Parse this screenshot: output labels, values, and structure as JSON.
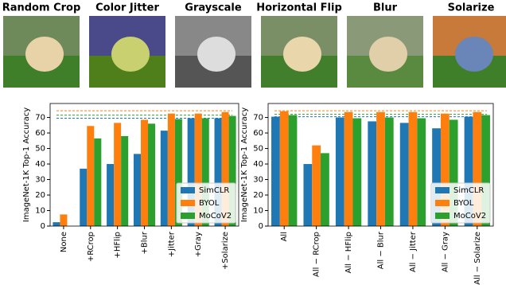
{
  "augmentations": [
    "Random Crop",
    "Color Jitter",
    "Grayscale",
    "Horizontal Flip",
    "Blur",
    "Solarize"
  ],
  "chart_data": [
    {
      "type": "bar",
      "ylabel": "ImageNet-1K Top-1 Accuracy",
      "categories": [
        "None",
        "+RCrop",
        "+HFlip",
        "+Blur",
        "+Jitter",
        "+Gray",
        "+Solarize"
      ],
      "series": [
        {
          "name": "SimCLR",
          "color": "#1f77b4",
          "values": [
            2.5,
            37,
            40,
            46.5,
            61.5,
            69.5,
            69.5
          ],
          "reference": 69.5
        },
        {
          "name": "BYOL",
          "color": "#ff7f0e",
          "values": [
            7.5,
            64.5,
            66.5,
            68.5,
            72.5,
            72.5,
            73.5
          ],
          "reference": 74.3
        },
        {
          "name": "MoCoV2",
          "color": "#2ca02c",
          "values": [
            0,
            56.5,
            58,
            66,
            69,
            69.5,
            71
          ],
          "reference": 71.5
        }
      ],
      "ylim": [
        0,
        79
      ],
      "yticks": [
        0,
        10,
        20,
        30,
        40,
        50,
        60,
        70
      ],
      "legend": "lower right"
    },
    {
      "type": "bar",
      "ylabel": "ImageNet-1K Top-1 Accuracy",
      "categories": [
        "All",
        "All − RCrop",
        "All − HFlip",
        "All − Blur",
        "All − Jitter",
        "All − Gray",
        "All − Solarize"
      ],
      "series": [
        {
          "name": "SimCLR",
          "color": "#1f77b4",
          "values": [
            70.5,
            40,
            70,
            67.5,
            66.5,
            63,
            70.5
          ],
          "reference": 70.5
        },
        {
          "name": "BYOL",
          "color": "#ff7f0e",
          "values": [
            74,
            52,
            73.5,
            73.5,
            73.5,
            72.5,
            73.5
          ],
          "reference": 74.3
        },
        {
          "name": "MoCoV2",
          "color": "#2ca02c",
          "values": [
            71.5,
            47,
            69.5,
            70,
            69.5,
            68.5,
            71.5
          ],
          "reference": 72
        }
      ],
      "ylim": [
        0,
        79
      ],
      "yticks": [
        0,
        10,
        20,
        30,
        40,
        50,
        60,
        70
      ],
      "legend": "lower right"
    }
  ]
}
